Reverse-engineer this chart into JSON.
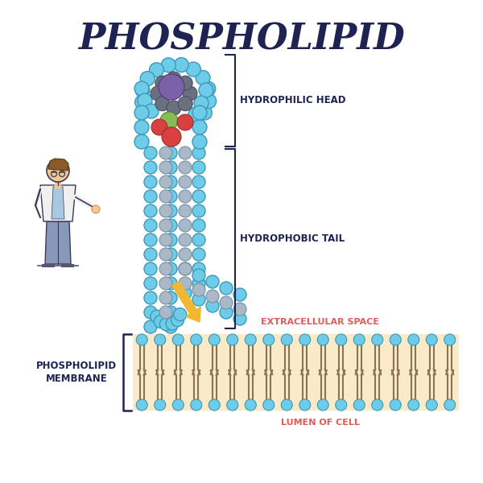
{
  "title": "PHOSPHOLIPID",
  "title_color": "#1e2352",
  "title_fontsize": 32,
  "bg_color": "#ffffff",
  "head_label": "HYDROPHILIC HEAD",
  "tail_label": "HYDROPHOBIC TAIL",
  "membrane_label": "PHOSPHOLIPID\nMEMBRANE",
  "extracellular_label": "EXTRACELLULAR SPACE",
  "lumen_label": "LUMEN OF CELL",
  "label_color_dark": "#1e2352",
  "label_color_red": "#e05a5a",
  "bead_color_light": "#6ecce8",
  "bead_outline": "#3a9ab8",
  "tail_color": "#8b7355",
  "membrane_bg": "#faeac8",
  "arrow_color": "#f0b830",
  "purple_bead": "#7b62a8",
  "dark_gray_bead": "#6a7080",
  "green_bead": "#88bb55",
  "red_bead": "#d94040"
}
